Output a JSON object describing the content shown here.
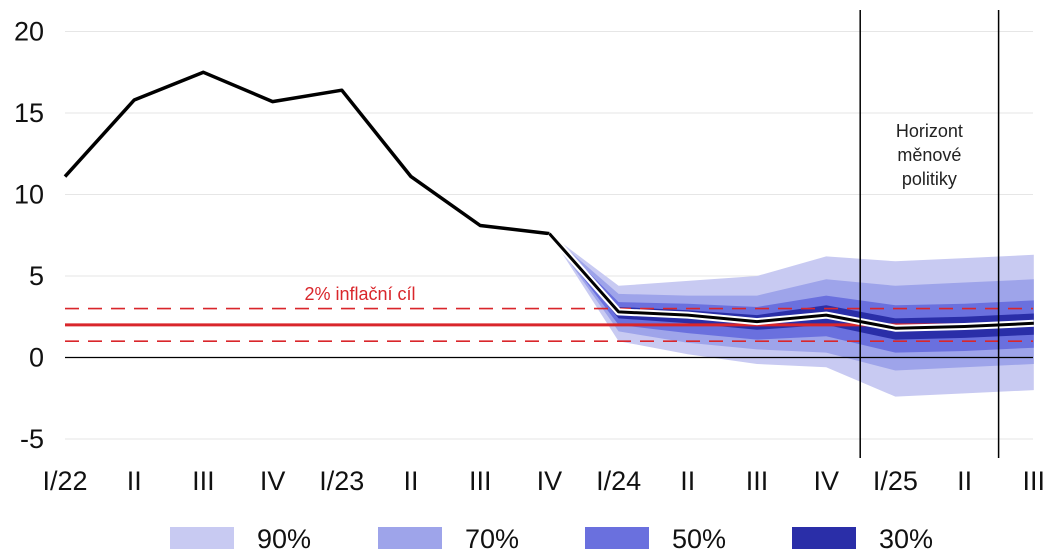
{
  "chart_data": {
    "type": "area",
    "title": "",
    "xlabel": "",
    "ylabel": "",
    "ylim": [
      -6.5,
      20
    ],
    "yticks": [
      20,
      15,
      10,
      5,
      0,
      -5
    ],
    "grid": "horizontal",
    "categories": [
      "I/22",
      "II",
      "III",
      "IV",
      "I/23",
      "II",
      "III",
      "IV",
      "I/24",
      "II",
      "III",
      "IV",
      "I/25",
      "II",
      "III"
    ],
    "history": {
      "x": [
        "I/22",
        "II",
        "III",
        "IV",
        "I/23",
        "II",
        "III",
        "IV"
      ],
      "values": [
        11.1,
        15.8,
        17.5,
        15.7,
        16.4,
        11.1,
        8.1,
        7.6
      ]
    },
    "forecast": {
      "x": [
        "IV",
        "I/24",
        "II",
        "III",
        "IV",
        "I/25",
        "II",
        "III"
      ],
      "values": [
        7.6,
        2.8,
        2.6,
        2.2,
        2.6,
        1.8,
        1.9,
        2.1
      ]
    },
    "bands": [
      {
        "name": "90%",
        "color": "#c8caf2",
        "lower": [
          7.6,
          1.0,
          0.2,
          -0.4,
          -0.6,
          -2.4,
          -2.2,
          -2.0
        ],
        "upper": [
          7.6,
          4.4,
          4.7,
          5.0,
          6.2,
          5.9,
          6.1,
          6.3
        ]
      },
      {
        "name": "70%",
        "color": "#9ea4ea",
        "lower": [
          7.6,
          1.6,
          0.9,
          0.5,
          0.3,
          -0.8,
          -0.6,
          -0.4
        ],
        "upper": [
          7.6,
          3.9,
          3.8,
          3.8,
          4.8,
          4.4,
          4.6,
          4.8
        ]
      },
      {
        "name": "50%",
        "color": "#6a70de",
        "lower": [
          7.6,
          2.0,
          1.5,
          1.1,
          1.3,
          0.3,
          0.4,
          0.6
        ],
        "upper": [
          7.6,
          3.4,
          3.3,
          3.1,
          3.8,
          3.2,
          3.3,
          3.5
        ]
      },
      {
        "name": "30%",
        "color": "#2a2ea8",
        "lower": [
          7.6,
          2.4,
          2.1,
          1.7,
          2.0,
          1.1,
          1.2,
          1.4
        ],
        "upper": [
          7.6,
          3.1,
          2.9,
          2.6,
          3.2,
          2.4,
          2.5,
          2.7
        ]
      }
    ],
    "inflation_target": {
      "label": "2% inflační cíl",
      "value": 2,
      "tolerance_upper": 3,
      "tolerance_lower": 1,
      "color": "#d9262b"
    },
    "policy_horizon": {
      "label_lines": [
        "Horizont",
        "měnové",
        "politiky"
      ],
      "x_start": "IV",
      "x_end": "II"
    },
    "legend": {
      "placement": "bottom",
      "entries": [
        "90%",
        "70%",
        "50%",
        "30%"
      ]
    }
  }
}
